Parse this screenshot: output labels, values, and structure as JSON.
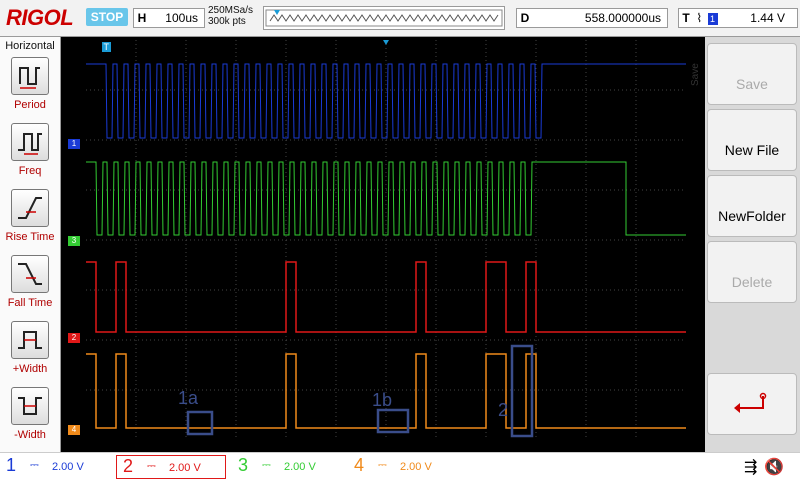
{
  "topbar": {
    "brand": "RIGOL",
    "run_state": "STOP",
    "horizontal_label": "H",
    "timebase": "100us",
    "sample_rate": "250MSa/s",
    "memory_depth": "300k pts",
    "delay_label": "D",
    "delay_value": "558.000000us",
    "trigger_label": "T",
    "trigger_channel": "1",
    "trigger_level": "1.44 V"
  },
  "left_panel": {
    "title": "Horizontal",
    "items": [
      "Period",
      "Freq",
      "Rise Time",
      "Fall Time",
      "+Width",
      "-Width"
    ]
  },
  "right_panel": {
    "title": "Save",
    "buttons": [
      {
        "label": "Save",
        "enabled": false
      },
      {
        "label": "New File",
        "enabled": true
      },
      {
        "label": "NewFolder",
        "enabled": true
      },
      {
        "label": "Delete",
        "enabled": false
      }
    ],
    "return_icon": "return-arrow-icon"
  },
  "channels": [
    {
      "num": "1",
      "scale": "2.00 V",
      "color": "#1a3bd6"
    },
    {
      "num": "2",
      "scale": "2.00 V",
      "color": "#e01818"
    },
    {
      "num": "3",
      "scale": "2.00 V",
      "color": "#33cc33"
    },
    {
      "num": "4",
      "scale": "2.00 V",
      "color": "#f08a1a"
    }
  ],
  "annotations": [
    "1a",
    "1b",
    "2"
  ],
  "status_icons": [
    "usb-icon",
    "speaker-mute-icon"
  ]
}
